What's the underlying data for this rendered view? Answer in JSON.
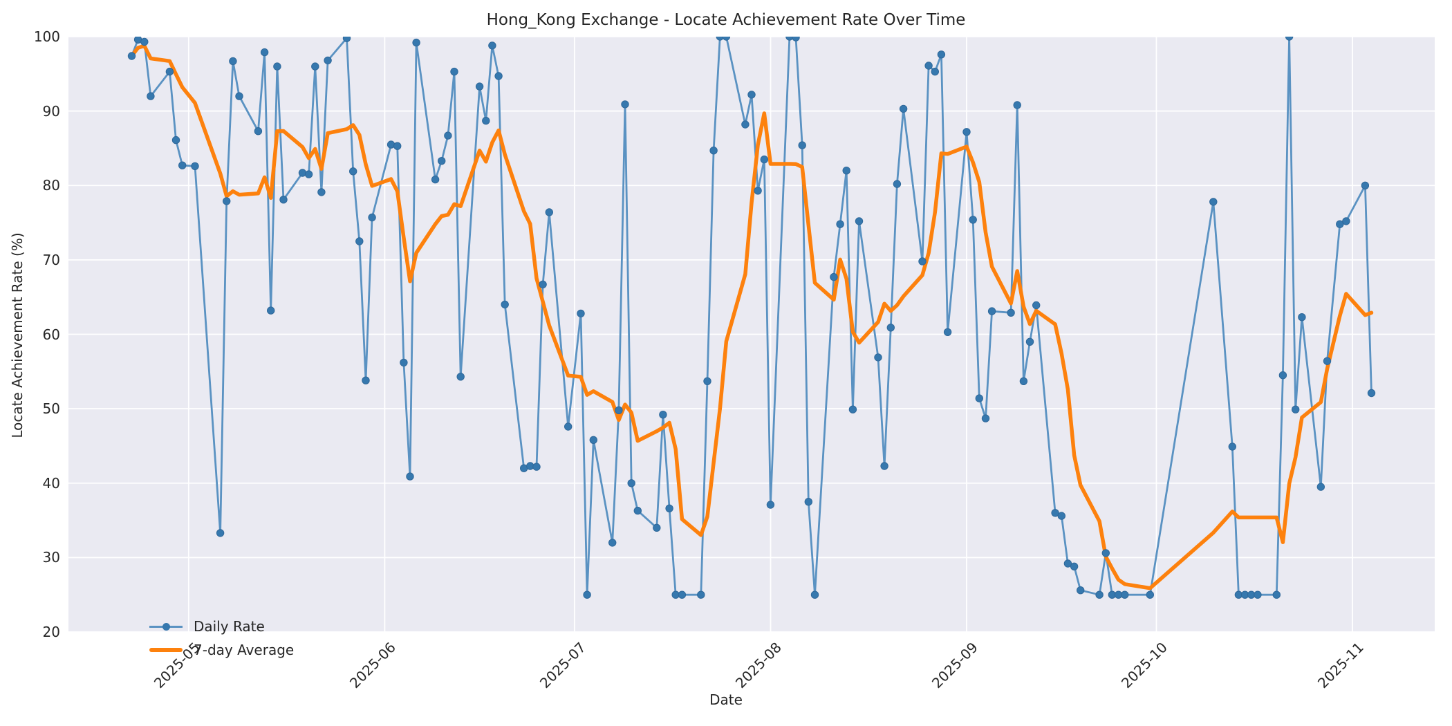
{
  "title": "Hong_Kong Exchange - Locate Achievement Rate Over Time",
  "axes": {
    "xlabel": "Date",
    "ylabel": "Locate Achievement Rate (%)",
    "ylim": [
      20,
      100
    ],
    "y_ticks": [
      20,
      30,
      40,
      50,
      60,
      70,
      80,
      90,
      100
    ],
    "x_ticks": [
      "2025-05",
      "2025-06",
      "2025-07",
      "2025-08",
      "2025-09",
      "2025-10",
      "2025-11"
    ],
    "x_range": [
      "2025-04-12",
      "2025-11-14"
    ],
    "grid": true
  },
  "legend": {
    "position": "lower-left",
    "items": [
      {
        "label": "Daily Rate",
        "marker": "line-with-dot",
        "color": "#3678ae"
      },
      {
        "label": "7-day Average",
        "marker": "thick-line",
        "color": "#fd810d"
      }
    ]
  },
  "colors": {
    "figure_bg": "#ffffff",
    "axes_bg": "#eaeaf2",
    "grid": "#ffffff",
    "daily_line": "#5a92c2",
    "daily_marker": "#3678ae",
    "daily_marker_edge": "#2f689a",
    "average_line": "#fd810d",
    "text": "#262626"
  },
  "chart_data": {
    "type": "line",
    "title": "Hong_Kong Exchange - Locate Achievement Rate Over Time",
    "xlabel": "Date",
    "ylabel": "Locate Achievement Rate (%)",
    "ylim": [
      20,
      100
    ],
    "series": [
      {
        "name": "Daily Rate",
        "points": [
          [
            "2025-04-22",
            97.4
          ],
          [
            "2025-04-23",
            99.6
          ],
          [
            "2025-04-24",
            99.3
          ],
          [
            "2025-04-25",
            92.0
          ],
          [
            "2025-04-28",
            95.3
          ],
          [
            "2025-04-29",
            86.1
          ],
          [
            "2025-04-30",
            82.7
          ],
          [
            "2025-05-02",
            82.6
          ],
          [
            "2025-05-06",
            33.3
          ],
          [
            "2025-05-07",
            77.9
          ],
          [
            "2025-05-08",
            96.7
          ],
          [
            "2025-05-09",
            92.0
          ],
          [
            "2025-05-12",
            87.3
          ],
          [
            "2025-05-13",
            97.9
          ],
          [
            "2025-05-14",
            63.2
          ],
          [
            "2025-05-15",
            96.0
          ],
          [
            "2025-05-16",
            78.1
          ],
          [
            "2025-05-19",
            81.7
          ],
          [
            "2025-05-20",
            81.5
          ],
          [
            "2025-05-21",
            96.0
          ],
          [
            "2025-05-22",
            79.1
          ],
          [
            "2025-05-23",
            96.8
          ],
          [
            "2025-05-26",
            99.8
          ],
          [
            "2025-05-27",
            81.9
          ],
          [
            "2025-05-28",
            72.5
          ],
          [
            "2025-05-29",
            53.8
          ],
          [
            "2025-05-30",
            75.7
          ],
          [
            "2025-06-02",
            85.5
          ],
          [
            "2025-06-03",
            85.3
          ],
          [
            "2025-06-04",
            56.2
          ],
          [
            "2025-06-05",
            40.9
          ],
          [
            "2025-06-06",
            99.2
          ],
          [
            "2025-06-09",
            80.8
          ],
          [
            "2025-06-10",
            83.3
          ],
          [
            "2025-06-11",
            86.7
          ],
          [
            "2025-06-12",
            95.3
          ],
          [
            "2025-06-13",
            54.3
          ],
          [
            "2025-06-16",
            93.3
          ],
          [
            "2025-06-17",
            88.7
          ],
          [
            "2025-06-18",
            98.8
          ],
          [
            "2025-06-19",
            94.7
          ],
          [
            "2025-06-20",
            64.0
          ],
          [
            "2025-06-23",
            42.0
          ],
          [
            "2025-06-24",
            42.3
          ],
          [
            "2025-06-25",
            42.2
          ],
          [
            "2025-06-26",
            66.7
          ],
          [
            "2025-06-27",
            76.4
          ],
          [
            "2025-06-30",
            47.6
          ],
          [
            "2025-07-02",
            62.8
          ],
          [
            "2025-07-03",
            25.0
          ],
          [
            "2025-07-04",
            45.8
          ],
          [
            "2025-07-07",
            32.0
          ],
          [
            "2025-07-08",
            49.8
          ],
          [
            "2025-07-09",
            90.9
          ],
          [
            "2025-07-10",
            40.0
          ],
          [
            "2025-07-11",
            36.3
          ],
          [
            "2025-07-14",
            34.0
          ],
          [
            "2025-07-15",
            49.2
          ],
          [
            "2025-07-16",
            36.6
          ],
          [
            "2025-07-17",
            25.0
          ],
          [
            "2025-07-18",
            25.0
          ],
          [
            "2025-07-21",
            25.0
          ],
          [
            "2025-07-22",
            53.7
          ],
          [
            "2025-07-23",
            84.7
          ],
          [
            "2025-07-24",
            100.0
          ],
          [
            "2025-07-25",
            100.0
          ],
          [
            "2025-07-28",
            88.2
          ],
          [
            "2025-07-29",
            92.2
          ],
          [
            "2025-07-30",
            79.3
          ],
          [
            "2025-07-31",
            83.5
          ],
          [
            "2025-08-01",
            37.1
          ],
          [
            "2025-08-04",
            100.0
          ],
          [
            "2025-08-05",
            99.9
          ],
          [
            "2025-08-06",
            85.4
          ],
          [
            "2025-08-07",
            37.5
          ],
          [
            "2025-08-08",
            25.0
          ],
          [
            "2025-08-11",
            67.7
          ],
          [
            "2025-08-12",
            74.8
          ],
          [
            "2025-08-13",
            82.0
          ],
          [
            "2025-08-14",
            49.9
          ],
          [
            "2025-08-15",
            75.2
          ],
          [
            "2025-08-18",
            56.9
          ],
          [
            "2025-08-19",
            42.3
          ],
          [
            "2025-08-20",
            60.9
          ],
          [
            "2025-08-21",
            80.2
          ],
          [
            "2025-08-22",
            90.3
          ],
          [
            "2025-08-25",
            69.8
          ],
          [
            "2025-08-26",
            96.1
          ],
          [
            "2025-08-27",
            95.3
          ],
          [
            "2025-08-28",
            97.6
          ],
          [
            "2025-08-29",
            60.3
          ],
          [
            "2025-09-01",
            87.2
          ],
          [
            "2025-09-02",
            75.4
          ],
          [
            "2025-09-03",
            51.4
          ],
          [
            "2025-09-04",
            48.7
          ],
          [
            "2025-09-05",
            63.1
          ],
          [
            "2025-09-08",
            62.9
          ],
          [
            "2025-09-09",
            90.8
          ],
          [
            "2025-09-10",
            53.7
          ],
          [
            "2025-09-11",
            59.0
          ],
          [
            "2025-09-12",
            63.9
          ],
          [
            "2025-09-15",
            36.0
          ],
          [
            "2025-09-16",
            35.6
          ],
          [
            "2025-09-17",
            29.2
          ],
          [
            "2025-09-18",
            28.8
          ],
          [
            "2025-09-19",
            25.6
          ],
          [
            "2025-09-22",
            25.0
          ],
          [
            "2025-09-23",
            30.6
          ],
          [
            "2025-09-24",
            25.0
          ],
          [
            "2025-09-25",
            25.0
          ],
          [
            "2025-09-26",
            25.0
          ],
          [
            "2025-09-30",
            25.0
          ],
          [
            "2025-10-10",
            77.8
          ],
          [
            "2025-10-13",
            44.9
          ],
          [
            "2025-10-14",
            25.0
          ],
          [
            "2025-10-15",
            25.0
          ],
          [
            "2025-10-16",
            25.0
          ],
          [
            "2025-10-17",
            25.0
          ],
          [
            "2025-10-20",
            25.0
          ],
          [
            "2025-10-21",
            54.5
          ],
          [
            "2025-10-22",
            100.0
          ],
          [
            "2025-10-23",
            49.9
          ],
          [
            "2025-10-24",
            62.3
          ],
          [
            "2025-10-27",
            39.5
          ],
          [
            "2025-10-28",
            56.4
          ],
          [
            "2025-10-30",
            74.8
          ],
          [
            "2025-10-31",
            75.2
          ],
          [
            "2025-11-03",
            80.0
          ],
          [
            "2025-11-04",
            52.1
          ]
        ]
      },
      {
        "name": "7-day Average",
        "derived": "rolling_mean_of_daily_rate",
        "window": 7,
        "min_periods": 1
      }
    ]
  }
}
